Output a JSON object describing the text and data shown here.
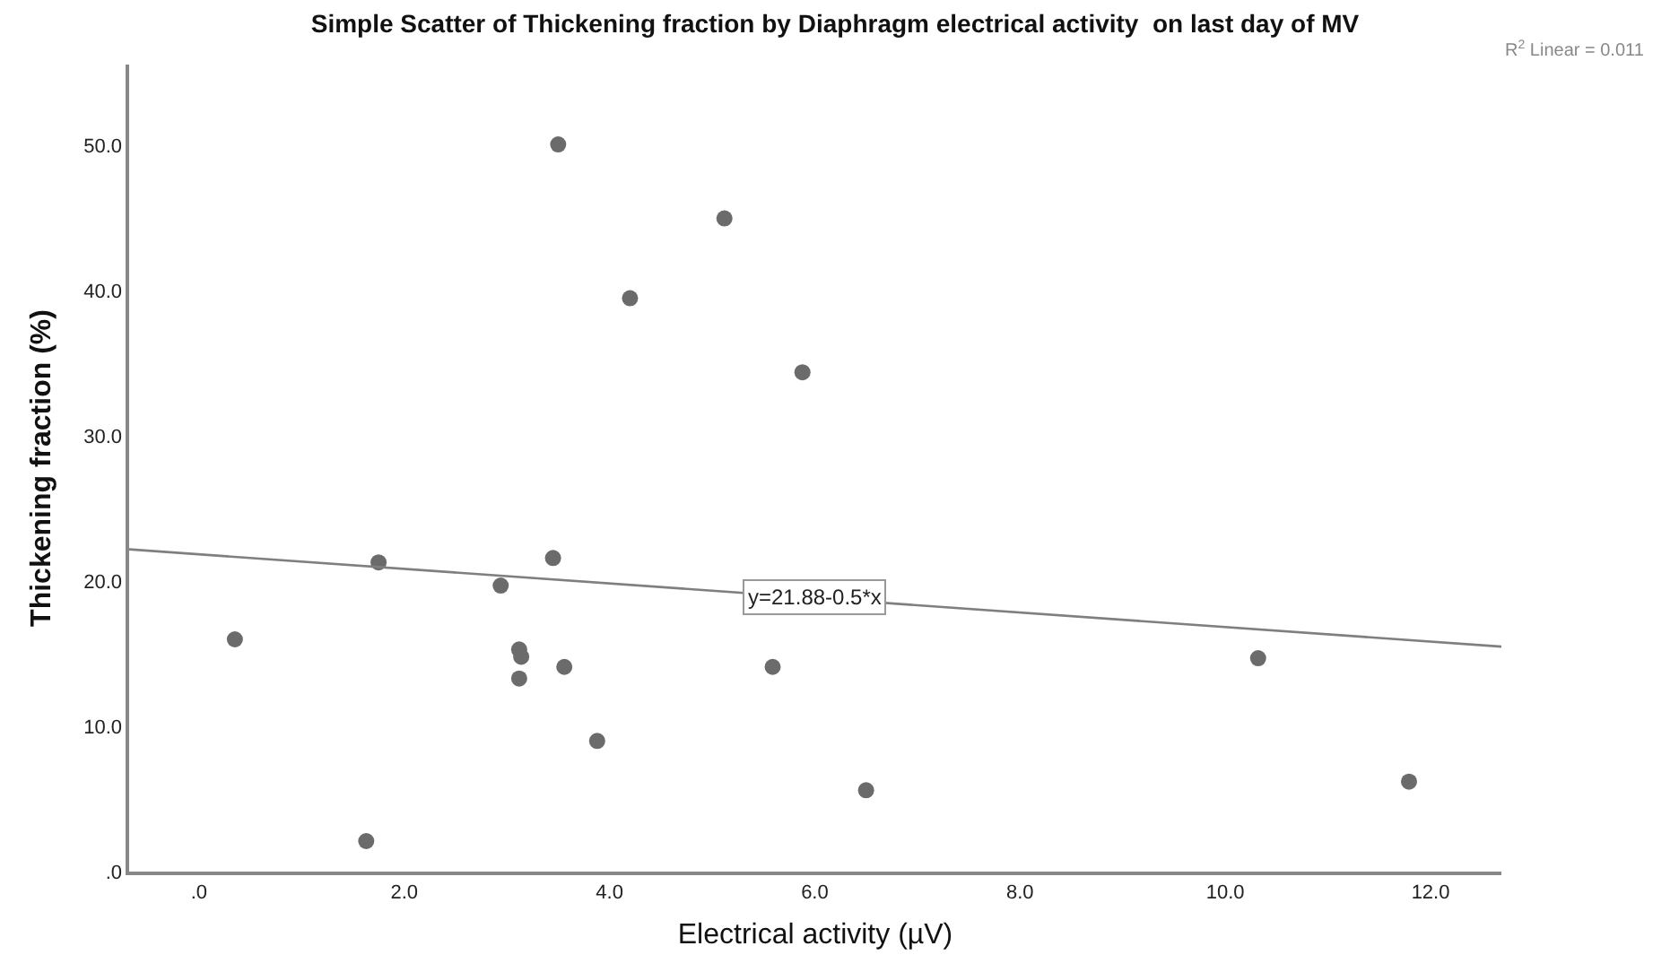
{
  "chart_data": {
    "type": "scatter",
    "title": "Simple Scatter of Thickening fraction by Diaphragm electrical activity  on last day of MV",
    "xlabel": "Electrical activity (µV)",
    "ylabel": "Thickening fraction (%)",
    "x": [
      3.5,
      5.12,
      4.2,
      5.88,
      1.75,
      3.45,
      2.94,
      0.35,
      3.12,
      3.14,
      3.12,
      3.56,
      5.59,
      3.88,
      1.63,
      6.5,
      10.32,
      11.79
    ],
    "series": [
      {
        "color": "#6b6b6b",
        "values": [
          50.1,
          45.0,
          39.5,
          34.4,
          21.3,
          21.6,
          19.7,
          16.0,
          15.3,
          14.8,
          13.3,
          14.1,
          14.1,
          9.0,
          2.1,
          5.6,
          14.7,
          6.2
        ]
      },
      {
        "type": "line",
        "marker": "none",
        "color": "#7f7f7f",
        "x": [
          -0.68,
          12.69
        ],
        "values": [
          22.2,
          15.5
        ]
      }
    ],
    "annotations": [
      {
        "text": "y=21.88-0.5*x",
        "x": 6.0,
        "y": 18.9
      },
      "R$^{2}$ Linear = 0.011"
    ],
    "xlim": [
      -0.68,
      12.69
    ],
    "ylim": [
      0,
      55.6
    ],
    "xticks": [
      {
        "value": 0,
        "label": ".0"
      },
      {
        "value": 2,
        "label": "2.0"
      },
      {
        "value": 4,
        "label": "4.0"
      },
      {
        "value": 6,
        "label": "6.0"
      },
      {
        "value": 8,
        "label": "8.0"
      },
      {
        "value": 10,
        "label": "10.0"
      },
      {
        "value": 12,
        "label": "12.0"
      }
    ],
    "yticks": [
      {
        "value": 0,
        "label": ".0"
      },
      {
        "value": 10,
        "label": "10.0"
      },
      {
        "value": 20,
        "label": "20.0"
      },
      {
        "value": 30,
        "label": "30.0"
      },
      {
        "value": 40,
        "label": "40.0"
      },
      {
        "value": 50,
        "label": "50.0"
      }
    ],
    "grid": false,
    "marker": "circle"
  }
}
